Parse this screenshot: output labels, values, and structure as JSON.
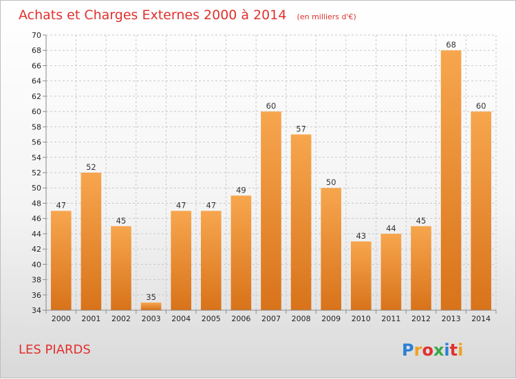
{
  "chart": {
    "title": "Achats et Charges Externes 2000 à 2014",
    "unit_note": "(en milliers d'€)",
    "location_label": "LES PIARDS",
    "brand": {
      "letters": [
        "P",
        "r",
        "o",
        "x",
        "i",
        "t",
        "i"
      ],
      "colors": [
        "#2a7fd4",
        "#f0a020",
        "#e03030",
        "#3aa84a",
        "#2a7fd4",
        "#e03030",
        "#f0a020"
      ]
    }
  },
  "chart_data": {
    "type": "bar",
    "title": "Achats et Charges Externes 2000 à 2014",
    "subtitle": "(en milliers d'€)",
    "categories": [
      "2000",
      "2001",
      "2002",
      "2003",
      "2004",
      "2005",
      "2006",
      "2007",
      "2008",
      "2009",
      "2010",
      "2011",
      "2012",
      "2013",
      "2014"
    ],
    "values": [
      47,
      52,
      45,
      35,
      47,
      47,
      49,
      60,
      57,
      50,
      43,
      44,
      45,
      68,
      60
    ],
    "data_labels": [
      "47",
      "52",
      "45",
      "35",
      "47",
      "47",
      "49",
      "60",
      "57",
      "50",
      "43",
      "44",
      "45",
      "68",
      "60"
    ],
    "ylim": [
      34,
      70
    ],
    "y_ticks": [
      34,
      36,
      38,
      40,
      42,
      44,
      46,
      48,
      50,
      52,
      54,
      56,
      58,
      60,
      62,
      64,
      66,
      68,
      70
    ],
    "xlabel": "",
    "ylabel": "",
    "grid": true,
    "legend": "none",
    "colors": {
      "bar_light": "#f7a64e",
      "bar_dark": "#d8731a",
      "grid": "#c8c8c8",
      "title": "#e0302c"
    }
  }
}
